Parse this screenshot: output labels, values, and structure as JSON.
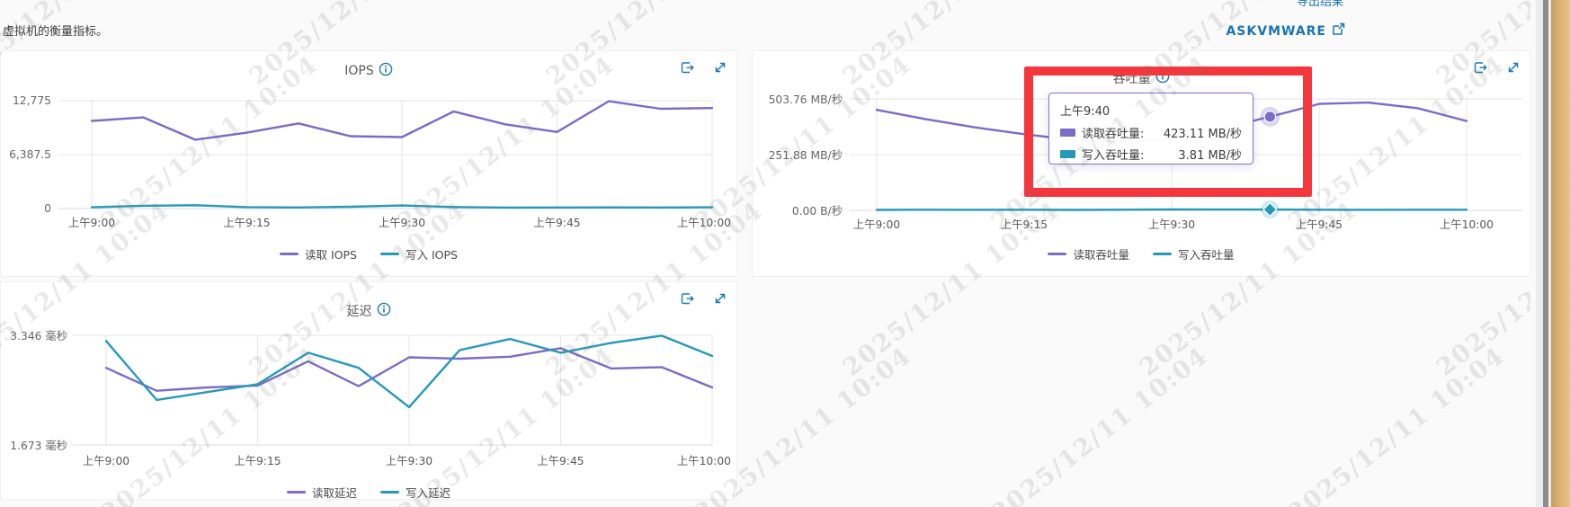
{
  "page": {
    "description": "虚拟机的衡量指标。",
    "watermark": "2025/12/11 10:04"
  },
  "header_links": {
    "export_results": "导出结果",
    "askvmware": "ASKVMWARE"
  },
  "colors": {
    "accent_blue": "#1a74b5",
    "series_purple": "#7b6cc7",
    "series_teal": "#2699b8",
    "annotation_red": "#f5363c"
  },
  "chart_data": [
    {
      "id": "iops",
      "type": "line",
      "title": "IOPS",
      "x_tick_labels": [
        "上午9:00",
        "上午9:15",
        "上午9:30",
        "上午9:45",
        "上午10:00"
      ],
      "y_tick_labels": [
        "12,775",
        "6,387.5",
        "0"
      ],
      "ylim": [
        0,
        12775
      ],
      "series": [
        {
          "name": "读取 IOPS",
          "color": "#7b6cc7",
          "values": [
            10380,
            10790,
            8160,
            8980,
            10080,
            8570,
            8460,
            11500,
            9980,
            9070,
            12710,
            11820,
            11900
          ]
        },
        {
          "name": "写入 IOPS",
          "color": "#2699b8",
          "values": [
            150,
            330,
            390,
            170,
            130,
            210,
            360,
            180,
            120,
            130,
            140,
            130,
            150
          ]
        }
      ]
    },
    {
      "id": "throughput",
      "type": "line",
      "title": "吞吐量",
      "x_tick_labels": [
        "上午9:00",
        "上午9:15",
        "上午9:30",
        "上午9:45",
        "上午10:00"
      ],
      "y_tick_labels": [
        "503.76 MB/秒",
        "251.88 MB/秒",
        "0.00 B/秒"
      ],
      "ylim": [
        0,
        503.76
      ],
      "series": [
        {
          "name": "读取吞吐量",
          "color": "#7b6cc7",
          "values": [
            454,
            412,
            375,
            344,
            318,
            308,
            325,
            370,
            423.11,
            481,
            487,
            462,
            404
          ]
        },
        {
          "name": "写入吞吐量",
          "color": "#2699b8",
          "values": [
            2,
            3,
            2.5,
            3,
            2,
            3,
            4,
            3.5,
            3.81,
            3,
            2.5,
            3,
            3
          ]
        }
      ],
      "hover_index": 8,
      "tooltip": {
        "time": "上午9:40",
        "rows": [
          {
            "label": "读取吞吐量:",
            "value": "423.11 MB/秒",
            "color": "#7b6cc7"
          },
          {
            "label": "写入吞吐量:",
            "value": "3.81 MB/秒",
            "color": "#2699b8"
          }
        ]
      }
    },
    {
      "id": "latency",
      "type": "line",
      "title": "延迟",
      "x_tick_labels": [
        "上午9:00",
        "上午9:15",
        "上午9:30",
        "上午9:45",
        "上午10:00"
      ],
      "y_tick_labels": [
        "3.346 毫秒",
        "1.673 毫秒"
      ],
      "ylim": [
        1.673,
        3.346
      ],
      "series": [
        {
          "name": "读取延迟",
          "color": "#7b6cc7",
          "values": [
            2.85,
            2.5,
            2.55,
            2.58,
            2.95,
            2.57,
            3.01,
            2.99,
            3.02,
            3.15,
            2.84,
            2.86,
            2.55
          ]
        },
        {
          "name": "写入延迟",
          "color": "#2699b8",
          "values": [
            3.26,
            2.36,
            2.48,
            2.6,
            3.08,
            2.85,
            2.25,
            3.12,
            3.29,
            3.08,
            3.23,
            3.34,
            3.03
          ]
        }
      ]
    }
  ]
}
